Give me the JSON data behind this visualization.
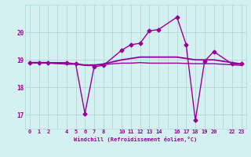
{
  "xlabel": "Windchill (Refroidissement éolien,°C)",
  "bg_color": "#d4f0f0",
  "line_color": "#990099",
  "grid_color": "#b0d8d8",
  "xtick_labels": [
    "0",
    "1",
    "2",
    "",
    "4",
    "5",
    "6",
    "7",
    "8",
    "",
    "10",
    "11",
    "12",
    "13",
    "14",
    "",
    "16",
    "17",
    "18",
    "19",
    "20",
    "",
    "22",
    "23"
  ],
  "xtick_positions": [
    0,
    1,
    2,
    3,
    4,
    5,
    6,
    7,
    8,
    9,
    10,
    11,
    12,
    13,
    14,
    15,
    16,
    17,
    18,
    19,
    20,
    21,
    22,
    23
  ],
  "ytick_labels": [
    "17",
    "18",
    "19",
    "20"
  ],
  "ytick_positions": [
    17,
    18,
    19,
    20
  ],
  "ylim": [
    16.5,
    21.0
  ],
  "xlim": [
    -0.5,
    23.5
  ],
  "series": [
    {
      "x": [
        0,
        1,
        2,
        4,
        5,
        6,
        7,
        8,
        10,
        11,
        12,
        13,
        14,
        16,
        17,
        18,
        19,
        20,
        22,
        23
      ],
      "y": [
        18.9,
        18.9,
        18.9,
        18.9,
        18.85,
        17.05,
        18.75,
        18.8,
        19.35,
        19.55,
        19.6,
        20.05,
        20.1,
        20.55,
        19.55,
        16.8,
        18.95,
        19.3,
        18.85,
        18.85
      ],
      "marker": "D",
      "markersize": 2.5,
      "linewidth": 1.0
    },
    {
      "x": [
        0,
        1,
        2,
        4,
        5,
        6,
        7,
        8,
        10,
        11,
        12,
        13,
        14,
        16,
        17,
        18,
        19,
        20,
        22,
        23
      ],
      "y": [
        18.9,
        18.9,
        18.9,
        18.85,
        18.85,
        18.8,
        18.8,
        18.85,
        19.0,
        19.05,
        19.1,
        19.1,
        19.1,
        19.1,
        19.05,
        19.0,
        19.0,
        19.0,
        18.9,
        18.85
      ],
      "marker": null,
      "markersize": 0,
      "linewidth": 1.3
    },
    {
      "x": [
        0,
        1,
        2,
        4,
        5,
        6,
        7,
        8,
        10,
        11,
        12,
        13,
        14,
        16,
        17,
        18,
        19,
        20,
        22,
        23
      ],
      "y": [
        18.9,
        18.88,
        18.88,
        18.85,
        18.85,
        18.82,
        18.82,
        18.83,
        18.88,
        18.88,
        18.9,
        18.88,
        18.88,
        18.88,
        18.87,
        18.86,
        18.86,
        18.86,
        18.82,
        18.8
      ],
      "marker": null,
      "markersize": 0,
      "linewidth": 1.0
    }
  ]
}
